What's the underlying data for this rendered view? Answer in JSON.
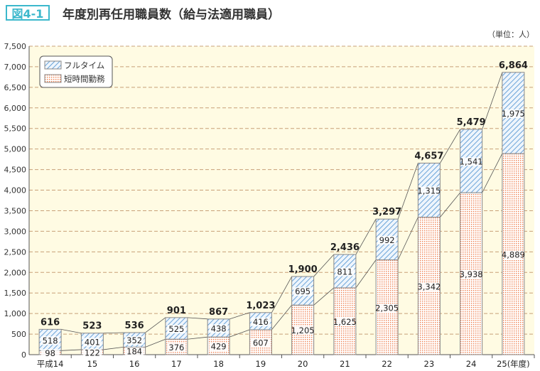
{
  "figure_label": "図4-1",
  "chart_data": {
    "type": "bar",
    "stacked": true,
    "title": "年度別再任用職員数（給与法適用職員）",
    "unit": "（単位：人）",
    "categories": [
      "平成14",
      "15",
      "16",
      "17",
      "18",
      "19",
      "20",
      "21",
      "22",
      "23",
      "24",
      "25(年度)"
    ],
    "series": [
      {
        "name": "短時間勤務",
        "color": "#f08050",
        "pattern": "dots",
        "values": [
          98,
          122,
          184,
          376,
          429,
          607,
          1205,
          1625,
          2305,
          3342,
          3938,
          4889
        ]
      },
      {
        "name": "フルタイム",
        "color": "#4a8fd0",
        "pattern": "diagonal-hatch",
        "values": [
          518,
          401,
          352,
          525,
          438,
          416,
          695,
          811,
          992,
          1315,
          1541,
          1975
        ]
      }
    ],
    "totals": [
      616,
      523,
      536,
      901,
      867,
      1023,
      1900,
      2436,
      3297,
      4657,
      5479,
      6864
    ],
    "ylim": [
      0,
      7500
    ],
    "yticks": [
      0,
      500,
      1000,
      1500,
      2000,
      2500,
      3000,
      3500,
      4000,
      4500,
      5000,
      5500,
      6000,
      6500,
      7000,
      7500
    ],
    "grid": true,
    "legend": "top-left",
    "legend_order": [
      "フルタイム",
      "短時間勤務"
    ],
    "background": "#fffbe3"
  }
}
